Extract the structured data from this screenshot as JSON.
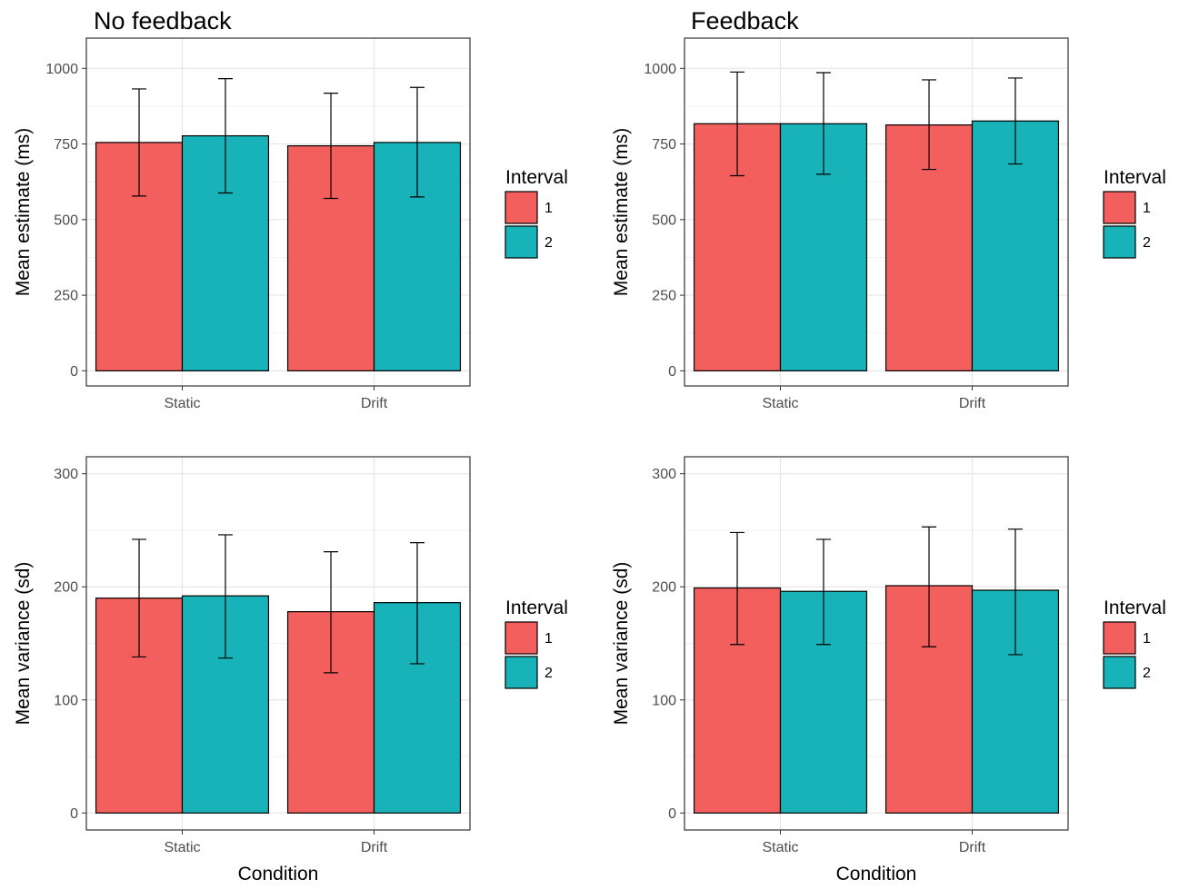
{
  "colors": {
    "interval_1": "#F25F5C",
    "interval_2": "#17B3B8",
    "grid_major": "#e6e6e6",
    "grid_minor": "#f2f2f2",
    "panel_border": "#333333",
    "tick_text": "#4d4d4d"
  },
  "legend": {
    "title": "Interval",
    "items": [
      "1",
      "2"
    ]
  },
  "chart_data": [
    {
      "type": "bar",
      "title": "No feedback",
      "xlabel": "",
      "ylabel": "Mean estimate (ms)",
      "categories": [
        "Static",
        "Drift"
      ],
      "ylim": [
        -50,
        1100
      ],
      "yticks": [
        0,
        250,
        500,
        750,
        1000
      ],
      "series": [
        {
          "name": "1",
          "values": [
            755,
            744
          ],
          "err_low": [
            578,
            570
          ],
          "err_high": [
            932,
            918
          ]
        },
        {
          "name": "2",
          "values": [
            777,
            755
          ],
          "err_low": [
            588,
            575
          ],
          "err_high": [
            966,
            937
          ]
        }
      ]
    },
    {
      "type": "bar",
      "title": "Feedback",
      "xlabel": "",
      "ylabel": "Mean estimate (ms)",
      "categories": [
        "Static",
        "Drift"
      ],
      "ylim": [
        -50,
        1100
      ],
      "yticks": [
        0,
        250,
        500,
        750,
        1000
      ],
      "series": [
        {
          "name": "1",
          "values": [
            817,
            813
          ],
          "err_low": [
            645,
            666
          ],
          "err_high": [
            988,
            962
          ]
        },
        {
          "name": "2",
          "values": [
            817,
            826
          ],
          "err_low": [
            650,
            684
          ],
          "err_high": [
            986,
            968
          ]
        }
      ]
    },
    {
      "type": "bar",
      "title": "",
      "xlabel": "Condition",
      "ylabel": "Mean variance (sd)",
      "categories": [
        "Static",
        "Drift"
      ],
      "ylim": [
        -15,
        315
      ],
      "yticks": [
        0,
        100,
        200,
        300
      ],
      "series": [
        {
          "name": "1",
          "values": [
            190,
            178
          ],
          "err_low": [
            138,
            124
          ],
          "err_high": [
            242,
            231
          ]
        },
        {
          "name": "2",
          "values": [
            192,
            186
          ],
          "err_low": [
            137,
            132
          ],
          "err_high": [
            246,
            239
          ]
        }
      ]
    },
    {
      "type": "bar",
      "title": "",
      "xlabel": "Condition",
      "ylabel": "Mean variance (sd)",
      "categories": [
        "Static",
        "Drift"
      ],
      "ylim": [
        -15,
        315
      ],
      "yticks": [
        0,
        100,
        200,
        300
      ],
      "series": [
        {
          "name": "1",
          "values": [
            199,
            201
          ],
          "err_low": [
            149,
            147
          ],
          "err_high": [
            248,
            253
          ]
        },
        {
          "name": "2",
          "values": [
            196,
            197
          ],
          "err_low": [
            149,
            140
          ],
          "err_high": [
            242,
            251
          ]
        }
      ]
    }
  ]
}
